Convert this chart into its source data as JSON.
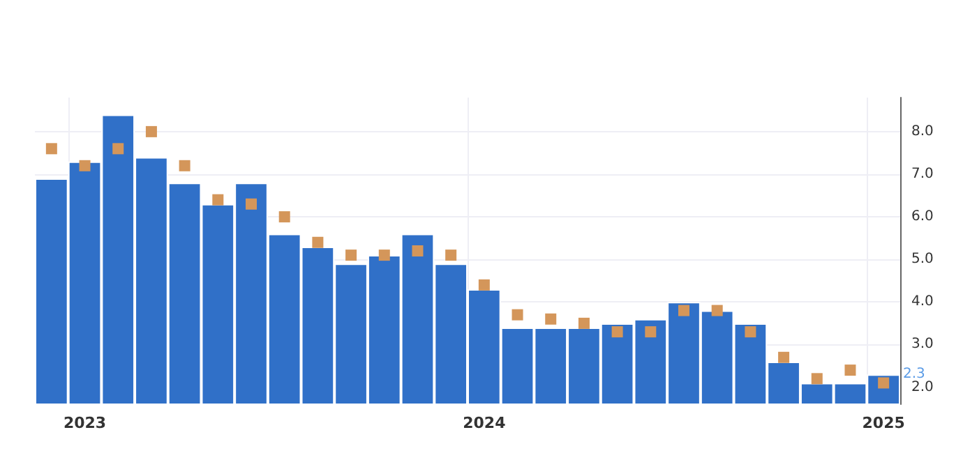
{
  "chart_data": {
    "type": "bar",
    "categories": [
      null,
      "2023",
      null,
      null,
      null,
      null,
      null,
      null,
      null,
      null,
      null,
      null,
      null,
      "2024",
      null,
      null,
      null,
      null,
      null,
      null,
      null,
      null,
      null,
      null,
      null,
      "2025"
    ],
    "series": [
      {
        "color": "#3070c8",
        "values": [
          6.9,
          7.3,
          8.4,
          7.4,
          6.8,
          6.3,
          6.8,
          5.6,
          5.3,
          4.9,
          5.1,
          5.6,
          4.9,
          4.3,
          3.4,
          3.4,
          3.4,
          3.5,
          3.6,
          4.0,
          3.8,
          3.5,
          2.6,
          2.1,
          2.1,
          2.3
        ]
      },
      {
        "type": "scatter",
        "color": "#d4965a",
        "values": [
          7.6,
          7.2,
          7.6,
          8.0,
          7.2,
          6.4,
          6.3,
          6.0,
          5.4,
          5.1,
          5.1,
          5.2,
          5.1,
          4.4,
          3.7,
          3.6,
          3.5,
          3.3,
          3.3,
          3.8,
          3.8,
          3.3,
          2.7,
          2.2,
          2.4,
          2.1
        ]
      }
    ],
    "ylim": [
      1.6,
      8.8
    ],
    "yticks": [
      {
        "value": 2,
        "label": "2.0"
      },
      {
        "value": 3,
        "label": "3.0"
      },
      {
        "value": 4,
        "label": "4.0"
      },
      {
        "value": 5,
        "label": "5.0"
      },
      {
        "value": 6,
        "label": "6.0"
      },
      {
        "value": 7,
        "label": "7.0"
      },
      {
        "value": 8,
        "label": "8.0"
      }
    ],
    "grid": true,
    "marker": "square",
    "annotations": [
      {
        "text": "2.3",
        "x": "2025",
        "y": 2.3
      }
    ]
  }
}
